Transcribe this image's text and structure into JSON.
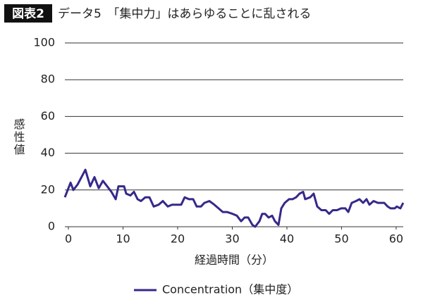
{
  "chart_data": {
    "type": "line",
    "figure_label": "図表2",
    "title": "データ5　「集中力」はあらゆることに乱される",
    "xlabel": "経過時間（分）",
    "ylabel": "感性値",
    "xlim": [
      -0.65,
      61.3
    ],
    "xticks": [
      0,
      10,
      20,
      30,
      40,
      50,
      60
    ],
    "ylim": [
      0,
      100
    ],
    "yticks": [
      0,
      20,
      40,
      60,
      80,
      100
    ],
    "grid": true,
    "legend": "bottom",
    "x": [
      -0.65,
      0.39,
      0.9,
      1.68,
      3.1,
      4.0,
      4.77,
      5.55,
      6.32,
      7.1,
      7.87,
      8.65,
      9.16,
      10.19,
      10.58,
      11.35,
      12.0,
      12.65,
      13.29,
      14.06,
      14.84,
      15.61,
      16.52,
      17.29,
      18.19,
      18.97,
      19.87,
      20.65,
      21.29,
      22.06,
      22.84,
      23.48,
      24.26,
      24.9,
      25.81,
      26.71,
      27.48,
      28.26,
      29.03,
      30.06,
      30.84,
      31.61,
      32.26,
      32.9,
      33.68,
      34.19,
      34.97,
      35.48,
      36.0,
      36.65,
      37.29,
      37.81,
      38.45,
      38.97,
      39.61,
      40.39,
      41.03,
      41.68,
      42.32,
      42.97,
      43.35,
      44.26,
      44.9,
      45.55,
      46.32,
      47.1,
      47.74,
      48.39,
      49.16,
      49.94,
      50.71,
      51.23,
      51.87,
      52.65,
      53.29,
      53.94,
      54.58,
      55.1,
      55.87,
      56.65,
      57.16,
      57.81,
      58.45,
      58.97,
      59.74,
      60.13,
      60.77,
      61.29
    ],
    "series": [
      {
        "name": "Concentration（集中度）",
        "color": "#35298a",
        "values": [
          16,
          24,
          20,
          23,
          31,
          22,
          27,
          21,
          25,
          22,
          19,
          15,
          22,
          22,
          18,
          17,
          19,
          15,
          14,
          16,
          16,
          11,
          12,
          14,
          11,
          12,
          12,
          12,
          16,
          15,
          15,
          11,
          11,
          13,
          14,
          12,
          10,
          8,
          8,
          7,
          6,
          3,
          5,
          5,
          1,
          0,
          3,
          7,
          7,
          5,
          6,
          3,
          1,
          10,
          13,
          15,
          15,
          16,
          18,
          19,
          15,
          16,
          18,
          11,
          9,
          9,
          7,
          9,
          9,
          10,
          10,
          8,
          13,
          14,
          15,
          13,
          15,
          12,
          14,
          13,
          13,
          13,
          11,
          10,
          10,
          11,
          10,
          13
        ]
      }
    ]
  }
}
